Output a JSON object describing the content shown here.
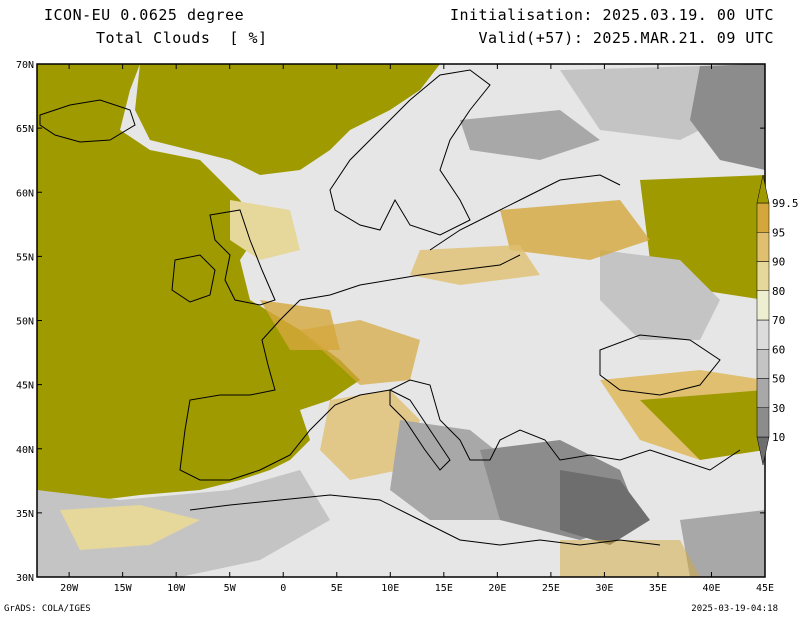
{
  "header": {
    "model": "ICON-EU 0.0625 degree",
    "field": "Total Clouds  [ %]",
    "init": "Initialisation: 2025.03.19. 00 UTC",
    "valid": "Valid(+57): 2025.MAR.21. 09 UTC"
  },
  "footer": {
    "credit": "GrADS: COLA/IGES",
    "timestamp": "2025-03-19-04:18"
  },
  "map": {
    "lon_range": [
      -23,
      45
    ],
    "lat_range": [
      30,
      70
    ],
    "lon_ticks": [
      "20W",
      "15W",
      "10W",
      "5W",
      "0",
      "5E",
      "10E",
      "15E",
      "20E",
      "25E",
      "30E",
      "35E",
      "40E",
      "45E"
    ],
    "lat_ticks": [
      "70N",
      "65N",
      "60N",
      "55N",
      "50N",
      "45N",
      "40N",
      "35N",
      "30N"
    ]
  },
  "colorbar": {
    "levels": [
      "10",
      "30",
      "50",
      "60",
      "70",
      "80",
      "90",
      "95",
      "99.5"
    ],
    "colors": [
      "#6e6e6e",
      "#8c8c8c",
      "#a8a8a8",
      "#c4c4c4",
      "#dcdcdc",
      "#eeeed0",
      "#e6d79b",
      "#e0c070",
      "#d4a73c",
      "#9e9a00"
    ]
  },
  "palette": {
    "overcast": "#9e9a00",
    "clear": "#e6e6e6",
    "coast": "#000000"
  }
}
